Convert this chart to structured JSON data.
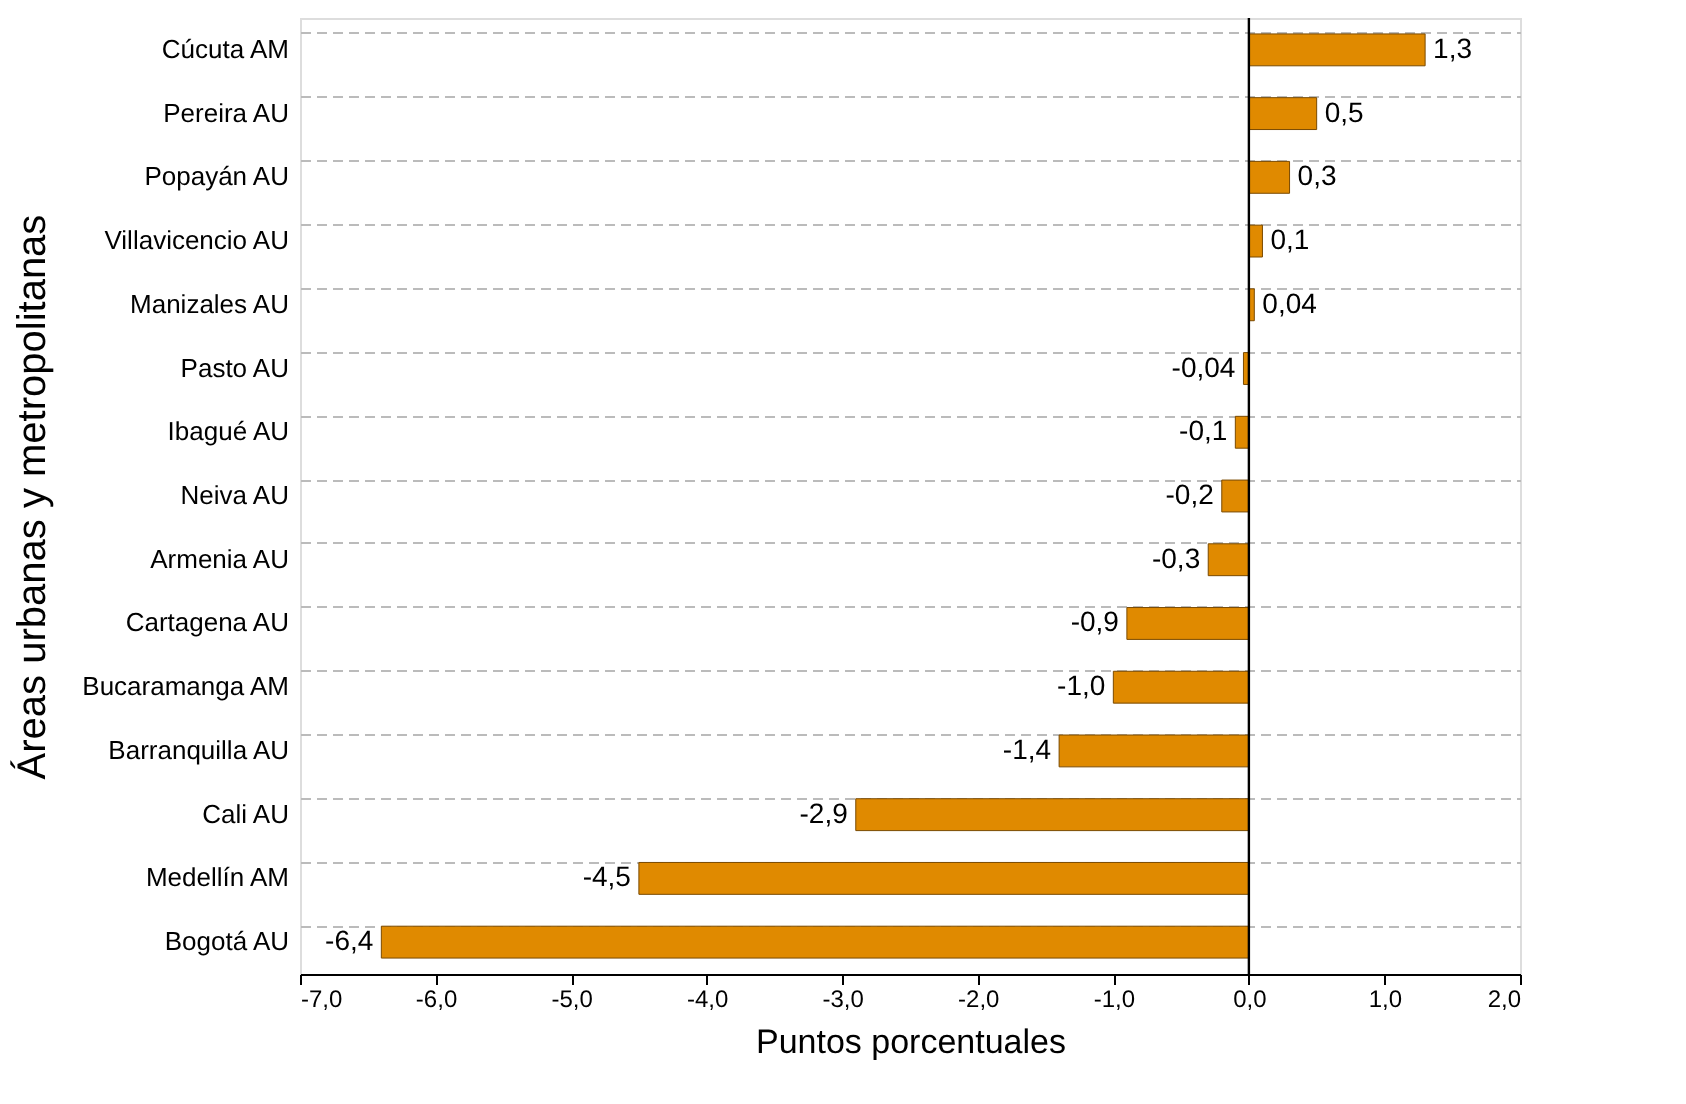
{
  "chart_data": {
    "type": "bar",
    "orientation": "horizontal",
    "xlabel": "Puntos porcentuales",
    "ylabel": "Áreas urbanas y metropolitanas",
    "categories": [
      "Cúcuta AM",
      "Pereira AU",
      "Popayán AU",
      "Villavicencio AU",
      "Manizales AU",
      "Pasto AU",
      "Ibagué AU",
      "Neiva AU",
      "Armenia AU",
      "Cartagena AU",
      "Bucaramanga AM",
      "Barranquilla AU",
      "Cali AU",
      "Medellín AM",
      "Bogotá AU"
    ],
    "values": [
      1.3,
      0.5,
      0.3,
      0.1,
      0.04,
      -0.04,
      -0.1,
      -0.2,
      -0.3,
      -0.9,
      -1.0,
      -1.4,
      -2.9,
      -4.5,
      -6.4
    ],
    "value_labels": [
      "1,3",
      "0,5",
      "0,3",
      "0,1",
      "0,04",
      "-0,04",
      "-0,1",
      "-0,2",
      "-0,3",
      "-0,9",
      "-1,0",
      "-1,4",
      "-2,9",
      "-4,5",
      "-6,4"
    ],
    "color": "#e08a00",
    "xlim": [
      -7,
      2
    ],
    "xticks": [
      {
        "value": -7,
        "label": "-7,0"
      },
      {
        "value": -6,
        "label": "-6,0"
      },
      {
        "value": -5,
        "label": "-5,0"
      },
      {
        "value": -4,
        "label": "-4,0"
      },
      {
        "value": -3,
        "label": "-3,0"
      },
      {
        "value": -2,
        "label": "-2,0"
      },
      {
        "value": -1,
        "label": "-1,0"
      },
      {
        "value": 0,
        "label": "0,0"
      },
      {
        "value": 1,
        "label": "1,0"
      },
      {
        "value": 2,
        "label": "2,0"
      }
    ],
    "ref_lines": [
      {
        "axis": "x",
        "value": 0,
        "color": "#000000"
      }
    ],
    "grid": "y"
  }
}
